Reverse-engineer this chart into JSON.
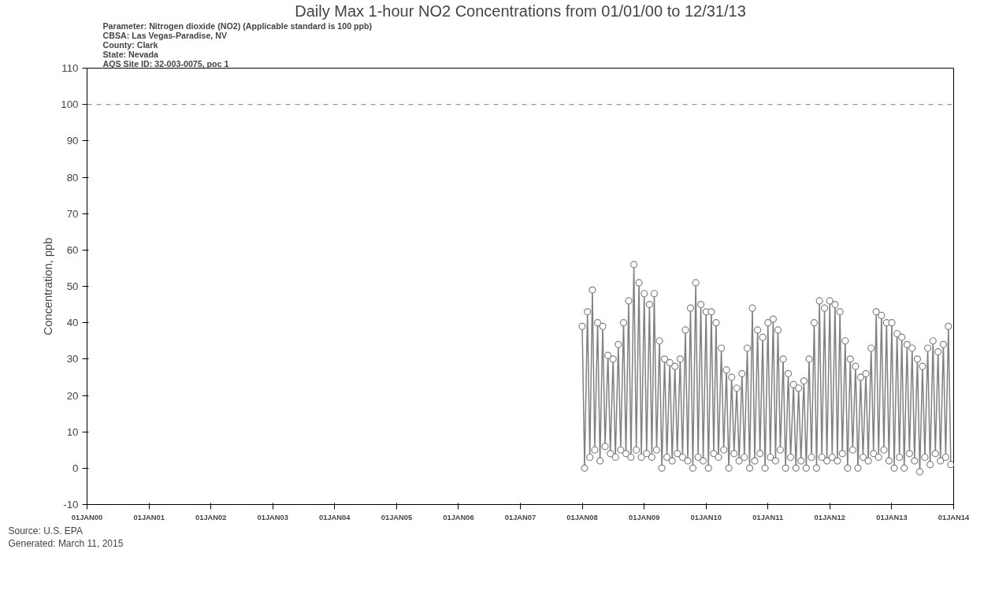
{
  "chart_data": {
    "type": "line",
    "title": "Daily Max 1-hour NO2 Concentrations from 01/01/00 to 12/31/13",
    "subtitle": "Parameter: Nitrogen dioxide (NO2) (Applicable standard is 100 ppb)\nCBSA: Las Vegas-Paradise, NV\nCounty: Clark\nState: Nevada\nAQS Site ID: 32-003-0075, poc 1",
    "ylabel": "Concentration, ppb",
    "annotations": [
      "Source: U.S. EPA",
      "Generated: March 11, 2015"
    ],
    "x": [
      "2008-01-01",
      "2008-01-15",
      "2008-02-01",
      "2008-02-15",
      "2008-03-01",
      "2008-03-15",
      "2008-04-01",
      "2008-04-15",
      "2008-05-01",
      "2008-05-15",
      "2008-06-01",
      "2008-06-15",
      "2008-07-01",
      "2008-07-15",
      "2008-08-01",
      "2008-08-15",
      "2008-09-01",
      "2008-09-15",
      "2008-10-01",
      "2008-10-15",
      "2008-11-01",
      "2008-11-15",
      "2008-12-01",
      "2008-12-15",
      "2009-01-01",
      "2009-01-15",
      "2009-02-01",
      "2009-02-15",
      "2009-03-01",
      "2009-03-15",
      "2009-04-01",
      "2009-04-15",
      "2009-05-01",
      "2009-05-15",
      "2009-06-01",
      "2009-06-15",
      "2009-07-01",
      "2009-07-15",
      "2009-08-01",
      "2009-08-15",
      "2009-09-01",
      "2009-09-15",
      "2009-10-01",
      "2009-10-15",
      "2009-11-01",
      "2009-11-15",
      "2009-12-01",
      "2009-12-15",
      "2010-01-01",
      "2010-01-15",
      "2010-02-01",
      "2010-02-15",
      "2010-03-01",
      "2010-03-15",
      "2010-04-01",
      "2010-04-15",
      "2010-05-01",
      "2010-05-15",
      "2010-06-01",
      "2010-06-15",
      "2010-07-01",
      "2010-07-15",
      "2010-08-01",
      "2010-08-15",
      "2010-09-01",
      "2010-09-15",
      "2010-10-01",
      "2010-10-15",
      "2010-11-01",
      "2010-11-15",
      "2010-12-01",
      "2010-12-15",
      "2011-01-01",
      "2011-01-15",
      "2011-02-01",
      "2011-02-15",
      "2011-03-01",
      "2011-03-15",
      "2011-04-01",
      "2011-04-15",
      "2011-05-01",
      "2011-05-15",
      "2011-06-01",
      "2011-06-15",
      "2011-07-01",
      "2011-07-15",
      "2011-08-01",
      "2011-08-15",
      "2011-09-01",
      "2011-09-15",
      "2011-10-01",
      "2011-10-15",
      "2011-11-01",
      "2011-11-15",
      "2011-12-01",
      "2011-12-15",
      "2012-01-01",
      "2012-01-15",
      "2012-02-01",
      "2012-02-15",
      "2012-03-01",
      "2012-03-15",
      "2012-04-01",
      "2012-04-15",
      "2012-05-01",
      "2012-05-15",
      "2012-06-01",
      "2012-06-15",
      "2012-07-01",
      "2012-07-15",
      "2012-08-01",
      "2012-08-15",
      "2012-09-01",
      "2012-09-15",
      "2012-10-01",
      "2012-10-15",
      "2012-11-01",
      "2012-11-15",
      "2012-12-01",
      "2012-12-15",
      "2013-01-01",
      "2013-01-15",
      "2013-02-01",
      "2013-02-15",
      "2013-03-01",
      "2013-03-15",
      "2013-04-01",
      "2013-04-15",
      "2013-05-01",
      "2013-05-15",
      "2013-06-01",
      "2013-06-15",
      "2013-07-01",
      "2013-07-15",
      "2013-08-01",
      "2013-08-15",
      "2013-09-01",
      "2013-09-15",
      "2013-10-01",
      "2013-10-15",
      "2013-11-01",
      "2013-11-15",
      "2013-12-01",
      "2013-12-15"
    ],
    "series": [
      {
        "color": "#808080",
        "values": [
          39,
          0,
          43,
          3,
          49,
          5,
          40,
          2,
          39,
          6,
          31,
          4,
          30,
          3,
          34,
          5,
          40,
          4,
          46,
          3,
          56,
          5,
          51,
          3,
          48,
          4,
          45,
          3,
          48,
          5,
          35,
          0,
          30,
          3,
          29,
          2,
          28,
          4,
          30,
          3,
          38,
          2,
          44,
          0,
          51,
          3,
          45,
          2,
          43,
          0,
          43,
          4,
          40,
          3,
          33,
          5,
          27,
          0,
          25,
          4,
          22,
          2,
          26,
          3,
          33,
          0,
          44,
          2,
          38,
          4,
          36,
          0,
          40,
          3,
          41,
          2,
          38,
          5,
          30,
          0,
          26,
          3,
          23,
          0,
          22,
          2,
          24,
          0,
          30,
          3,
          40,
          0,
          46,
          3,
          44,
          2,
          46,
          3,
          45,
          2,
          43,
          4,
          35,
          0,
          30,
          5,
          28,
          0,
          25,
          3,
          26,
          2,
          33,
          4,
          43,
          3,
          42,
          5,
          40,
          2,
          40,
          0,
          37,
          3,
          36,
          0,
          34,
          4,
          33,
          2,
          30,
          -1,
          28,
          3,
          33,
          1,
          35,
          4,
          32,
          2,
          34,
          3,
          39,
          1
        ]
      }
    ],
    "xlim": [
      "2000-01-01",
      "2014-01-01"
    ],
    "xticks": [
      {
        "value": "2000-01-01",
        "label": "01JAN00"
      },
      {
        "value": "2001-01-01",
        "label": "01JAN01"
      },
      {
        "value": "2002-01-01",
        "label": "01JAN02"
      },
      {
        "value": "2003-01-01",
        "label": "01JAN03"
      },
      {
        "value": "2004-01-01",
        "label": "01JAN04"
      },
      {
        "value": "2005-01-01",
        "label": "01JAN05"
      },
      {
        "value": "2006-01-01",
        "label": "01JAN06"
      },
      {
        "value": "2007-01-01",
        "label": "01JAN07"
      },
      {
        "value": "2008-01-01",
        "label": "01JAN08"
      },
      {
        "value": "2009-01-01",
        "label": "01JAN09"
      },
      {
        "value": "2010-01-01",
        "label": "01JAN10"
      },
      {
        "value": "2011-01-01",
        "label": "01JAN11"
      },
      {
        "value": "2012-01-01",
        "label": "01JAN12"
      },
      {
        "value": "2013-01-01",
        "label": "01JAN13"
      },
      {
        "value": "2014-01-01",
        "label": "01JAN14"
      }
    ],
    "ylim": [
      -10,
      110
    ],
    "yticks": [
      -10,
      0,
      10,
      20,
      30,
      40,
      50,
      60,
      70,
      80,
      90,
      100,
      110
    ],
    "ref_lines": [
      {
        "axis": "y",
        "value": 100,
        "color": "#808080",
        "line_style": "dashed"
      }
    ],
    "marker": "circle",
    "line_style": "solid",
    "grid": false
  }
}
